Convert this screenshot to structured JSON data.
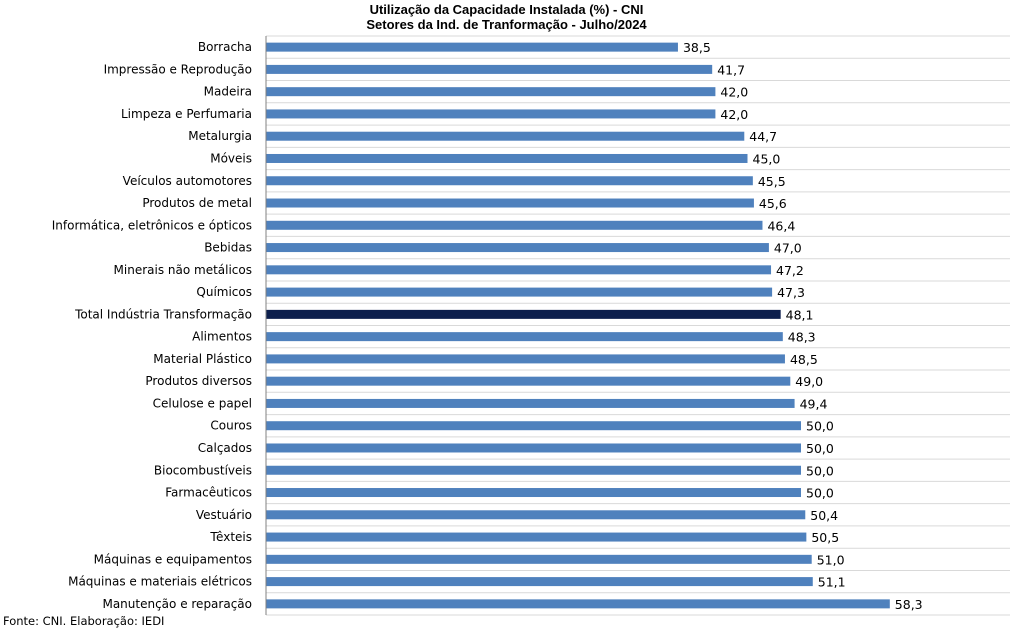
{
  "chart_data": {
    "type": "bar",
    "orientation": "horizontal",
    "title": "Utilização da Capacidade Instalada (%) - CNI",
    "subtitle": "Setores da Ind. de Tranformação - Julho/2024",
    "categories": [
      "Borracha",
      "Impressão e Reprodução",
      "Madeira",
      "Limpeza e Perfumaria",
      "Metalurgia",
      "Móveis",
      "Veículos automotores",
      "Produtos de metal",
      "Informática, eletrônicos e ópticos",
      "Bebidas",
      "Minerais não metálicos",
      "Químicos",
      "Total Indústria Transformação",
      "Alimentos",
      "Material Plástico",
      "Produtos diversos",
      "Celulose e papel",
      "Couros",
      "Calçados",
      "Biocombustíveis",
      "Farmacêuticos",
      "Vestuário",
      "Têxteis",
      "Máquinas e equipamentos",
      "Máquinas e materiais elétricos",
      "Manutenção e reparação"
    ],
    "values": [
      38.5,
      41.7,
      42.0,
      42.0,
      44.7,
      45.0,
      45.5,
      45.6,
      46.4,
      47.0,
      47.2,
      47.3,
      48.1,
      48.3,
      48.5,
      49.0,
      49.4,
      50.0,
      50.0,
      50.0,
      50.0,
      50.4,
      50.5,
      51.0,
      51.1,
      58.3
    ],
    "value_labels": [
      "38,5",
      "41,7",
      "42,0",
      "42,0",
      "44,7",
      "45,0",
      "45,5",
      "45,6",
      "46,4",
      "47,0",
      "47,2",
      "47,3",
      "48,1",
      "48,3",
      "48,5",
      "49,0",
      "49,4",
      "50,0",
      "50,0",
      "50,0",
      "50,0",
      "50,4",
      "50,5",
      "51,0",
      "51,1",
      "58,3"
    ],
    "highlight_category": "Total Indústria Transformação",
    "bar_color": "#4F81BD",
    "highlight_color": "#0D1F4D",
    "gridline_color": "#D9D9D9",
    "grid": true,
    "xlim": [
      0,
      70
    ]
  },
  "source_note": "Fonte: CNI. Elaboração: IEDI"
}
